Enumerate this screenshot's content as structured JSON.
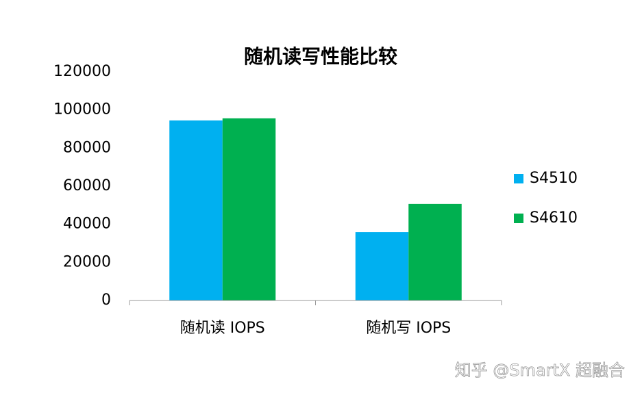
{
  "chart_data": {
    "type": "bar",
    "title": "随机读写性能比较",
    "categories": [
      "随机读 IOPS",
      "随机写 IOPS"
    ],
    "series": [
      {
        "name": "S4510",
        "color": "#00b0f0",
        "values": [
          94500,
          35900
        ]
      },
      {
        "name": "S4610",
        "color": "#00b050",
        "values": [
          95600,
          50700
        ]
      }
    ],
    "ylim": [
      0,
      120000
    ],
    "yticks": [
      0,
      20000,
      40000,
      60000,
      80000,
      100000,
      120000
    ],
    "grid": false,
    "legend": "right",
    "watermark": "知乎 @SmartX 超融合"
  }
}
